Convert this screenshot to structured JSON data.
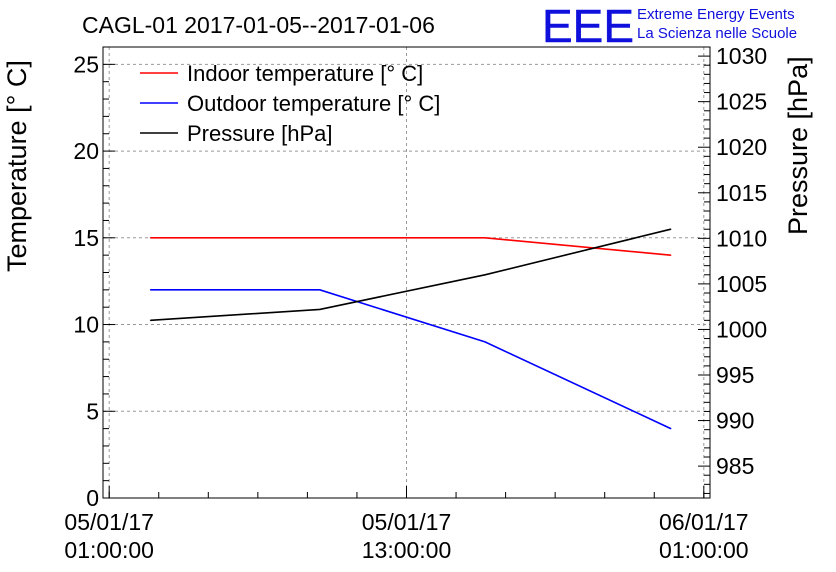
{
  "chart_data": {
    "type": "line",
    "title": "CAGL-01 2017-01-05--2017-01-06",
    "ylabel": "Temperature [° C]",
    "y2label": "Pressure [hPa]",
    "xlabel": "",
    "ylim": [
      0,
      26
    ],
    "y2lim": [
      981.5,
      1031
    ],
    "xlim": [
      "2017-01-05 00:45:00",
      "2017-01-06 01:15:00"
    ],
    "grid": true,
    "legend_position": "top-left",
    "x_ticks": [
      {
        "value": "2017-01-05 01:00:00",
        "line1": "05/01/17",
        "line2": "01:00:00"
      },
      {
        "value": "2017-01-05 13:00:00",
        "line1": "05/01/17",
        "line2": "13:00:00"
      },
      {
        "value": "2017-01-06 01:00:00",
        "line1": "06/01/17",
        "line2": "01:00:00"
      }
    ],
    "y_ticks": [
      "0",
      "5",
      "10",
      "15",
      "20",
      "25"
    ],
    "y2_ticks": [
      "985",
      "990",
      "995",
      "1000",
      "1005",
      "1010",
      "1015",
      "1020",
      "1025",
      "1030"
    ],
    "series": [
      {
        "name": "Indoor temperature [° C]",
        "axis": "left",
        "color": "#ff0000",
        "x": [
          "2017-01-05 02:40:00",
          "2017-01-05 16:10:00",
          "2017-01-05 23:40:00"
        ],
        "values": [
          15,
          15,
          14
        ]
      },
      {
        "name": "Outdoor temperature [° C]",
        "axis": "left",
        "color": "#0000ff",
        "x": [
          "2017-01-05 02:40:00",
          "2017-01-05 09:30:00",
          "2017-01-05 16:10:00",
          "2017-01-05 23:40:00"
        ],
        "values": [
          12,
          12,
          9,
          4
        ]
      },
      {
        "name": "Pressure [hPa]",
        "axis": "right",
        "color": "#000000",
        "x": [
          "2017-01-05 02:40:00",
          "2017-01-05 09:30:00",
          "2017-01-05 16:10:00",
          "2017-01-05 23:40:00"
        ],
        "values": [
          1001,
          1002.2,
          1006,
          1011
        ]
      }
    ]
  },
  "logo": {
    "letters": "EEE",
    "line1": "Extreme Energy Events",
    "line2": "La Scienza nelle Scuole",
    "color": "#1010dd"
  }
}
